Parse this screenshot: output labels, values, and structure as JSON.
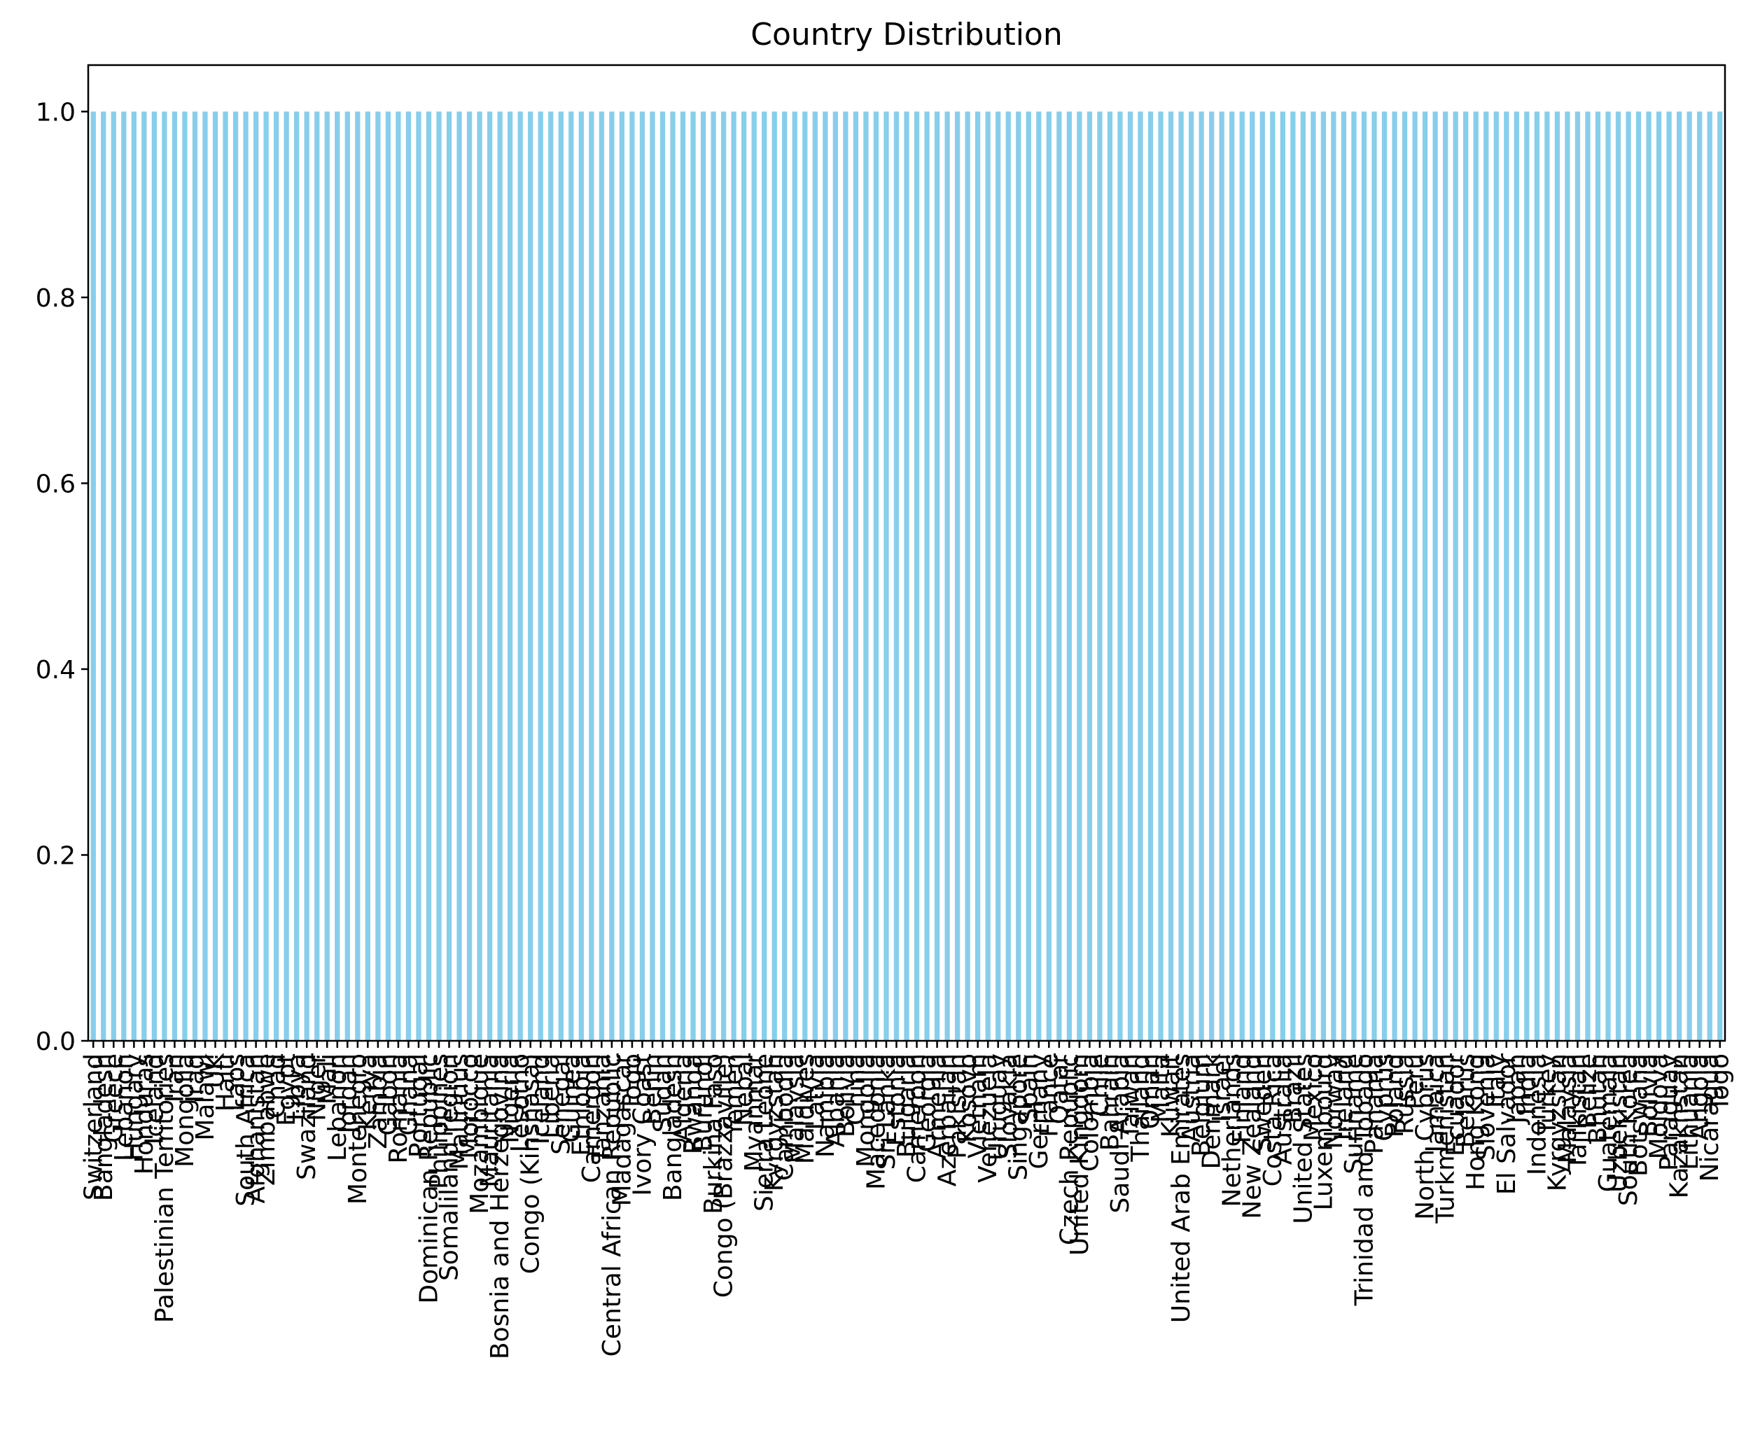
{
  "chart_data": {
    "type": "bar",
    "title": "Country Distribution",
    "xlabel": "",
    "ylabel": "",
    "ylim": [
      0,
      1.05
    ],
    "yticks": [
      0.0,
      0.2,
      0.4,
      0.6,
      0.8,
      1.0
    ],
    "ytick_labels": [
      "0.0",
      "0.2",
      "0.4",
      "0.6",
      "0.8",
      "1.0"
    ],
    "grid": false,
    "legend": "none",
    "bar_color": "#87CEEB",
    "categories": [
      "Switzerland",
      "Bangladesh",
      "Greece",
      "Lebanon",
      "Hungary",
      "Honduras",
      "Iceland",
      "Palestinian Territories",
      "Iran",
      "Mongolia",
      "Iraq",
      "Malawi",
      "UK",
      "Haiti",
      "Laos",
      "South Africa",
      "Afghanistan",
      "Zimbabwe",
      "Chad",
      "Egypt",
      "Libya",
      "Swaziland",
      "Niger",
      "Mali",
      "Lebanon",
      "Jordan",
      "Montenegro",
      "Kenya",
      "Zambia",
      "Gabon",
      "Romania",
      "Ghana",
      "Portugal",
      "Dominican Republic",
      "Philippines",
      "Somaliland region",
      "Mauritius",
      "Morocco",
      "Mozambique",
      "Mauritania",
      "Bosnia and Herzegovina",
      "Nigeria",
      "Lesotho",
      "Congo (Kinshasa)",
      "Iceland",
      "Liberia",
      "Senegal",
      "Guinea",
      "Ethiopia",
      "Cameroon",
      "Tanzania",
      "Central African Republic",
      "Madagascar",
      "Togo",
      "Ivory Coast",
      "Benin",
      "Sudan",
      "Bangladesh",
      "Algeria",
      "Rwanda",
      "Burundi",
      "Burkina Faso",
      "Congo (Brazzaville)",
      "Yemen",
      "Nepal",
      "Myanmar",
      "Sierra Leone",
      "Kyrgyzstan",
      "Cambodia",
      "Malaysia",
      "Maldives",
      "Latvia",
      "Namibia",
      "Albania",
      "Bolivia",
      "China",
      "Mongolia",
      "Macedonia",
      "Sri Lanka",
      "Estonia",
      "Bulgaria",
      "Cameroon",
      "Georgia",
      "Armenia",
      "Azerbaijan",
      "Pakistan",
      "Kosovo",
      "Vietnam",
      "Venezuela",
      "Uruguay",
      "Slovakia",
      "Singapore",
      "Spain",
      "Germany",
      "France",
      "Qatar",
      "Czech Republic",
      "United Kingdom",
      "Colombia",
      "Chile",
      "Bahrain",
      "Saudi Arabia",
      "Taiwan",
      "Thailand",
      "Oman",
      "Malta",
      "Kuwait",
      "United Arab Emirates",
      "Austria",
      "Belgium",
      "Denmark",
      "Israel",
      "Netherlands",
      "Finland",
      "New Zealand",
      "Sweden",
      "Costa Rica",
      "Australia",
      "Brazil",
      "United States",
      "Mexico",
      "Luxembourg",
      "Norway",
      "Ireland",
      "Suriname",
      "Trinidad and Tobago",
      "Panama",
      "Cyprus",
      "Poland",
      "Russia",
      "Peru",
      "North Cyprus",
      "Jamaica",
      "Turkmenistan",
      "Ecuador",
      "Belarus",
      "Hong Kong",
      "Slovenia",
      "Italy",
      "El Salvador",
      "Japan",
      "India",
      "Indonesia",
      "Turkey",
      "Kyrgyzstan",
      "Malaysia",
      "Tajikistan",
      "Belize",
      "Bhutan",
      "Guatemala",
      "Uzbekistan",
      "South Korea",
      "Botswana",
      "Bolivia",
      "Moldova",
      "Paraguay",
      "Kazakhstan",
      "Lithuania",
      "Angola",
      "Nicaragua",
      "Togo"
    ],
    "values_note_all_equal": 1.0
  }
}
